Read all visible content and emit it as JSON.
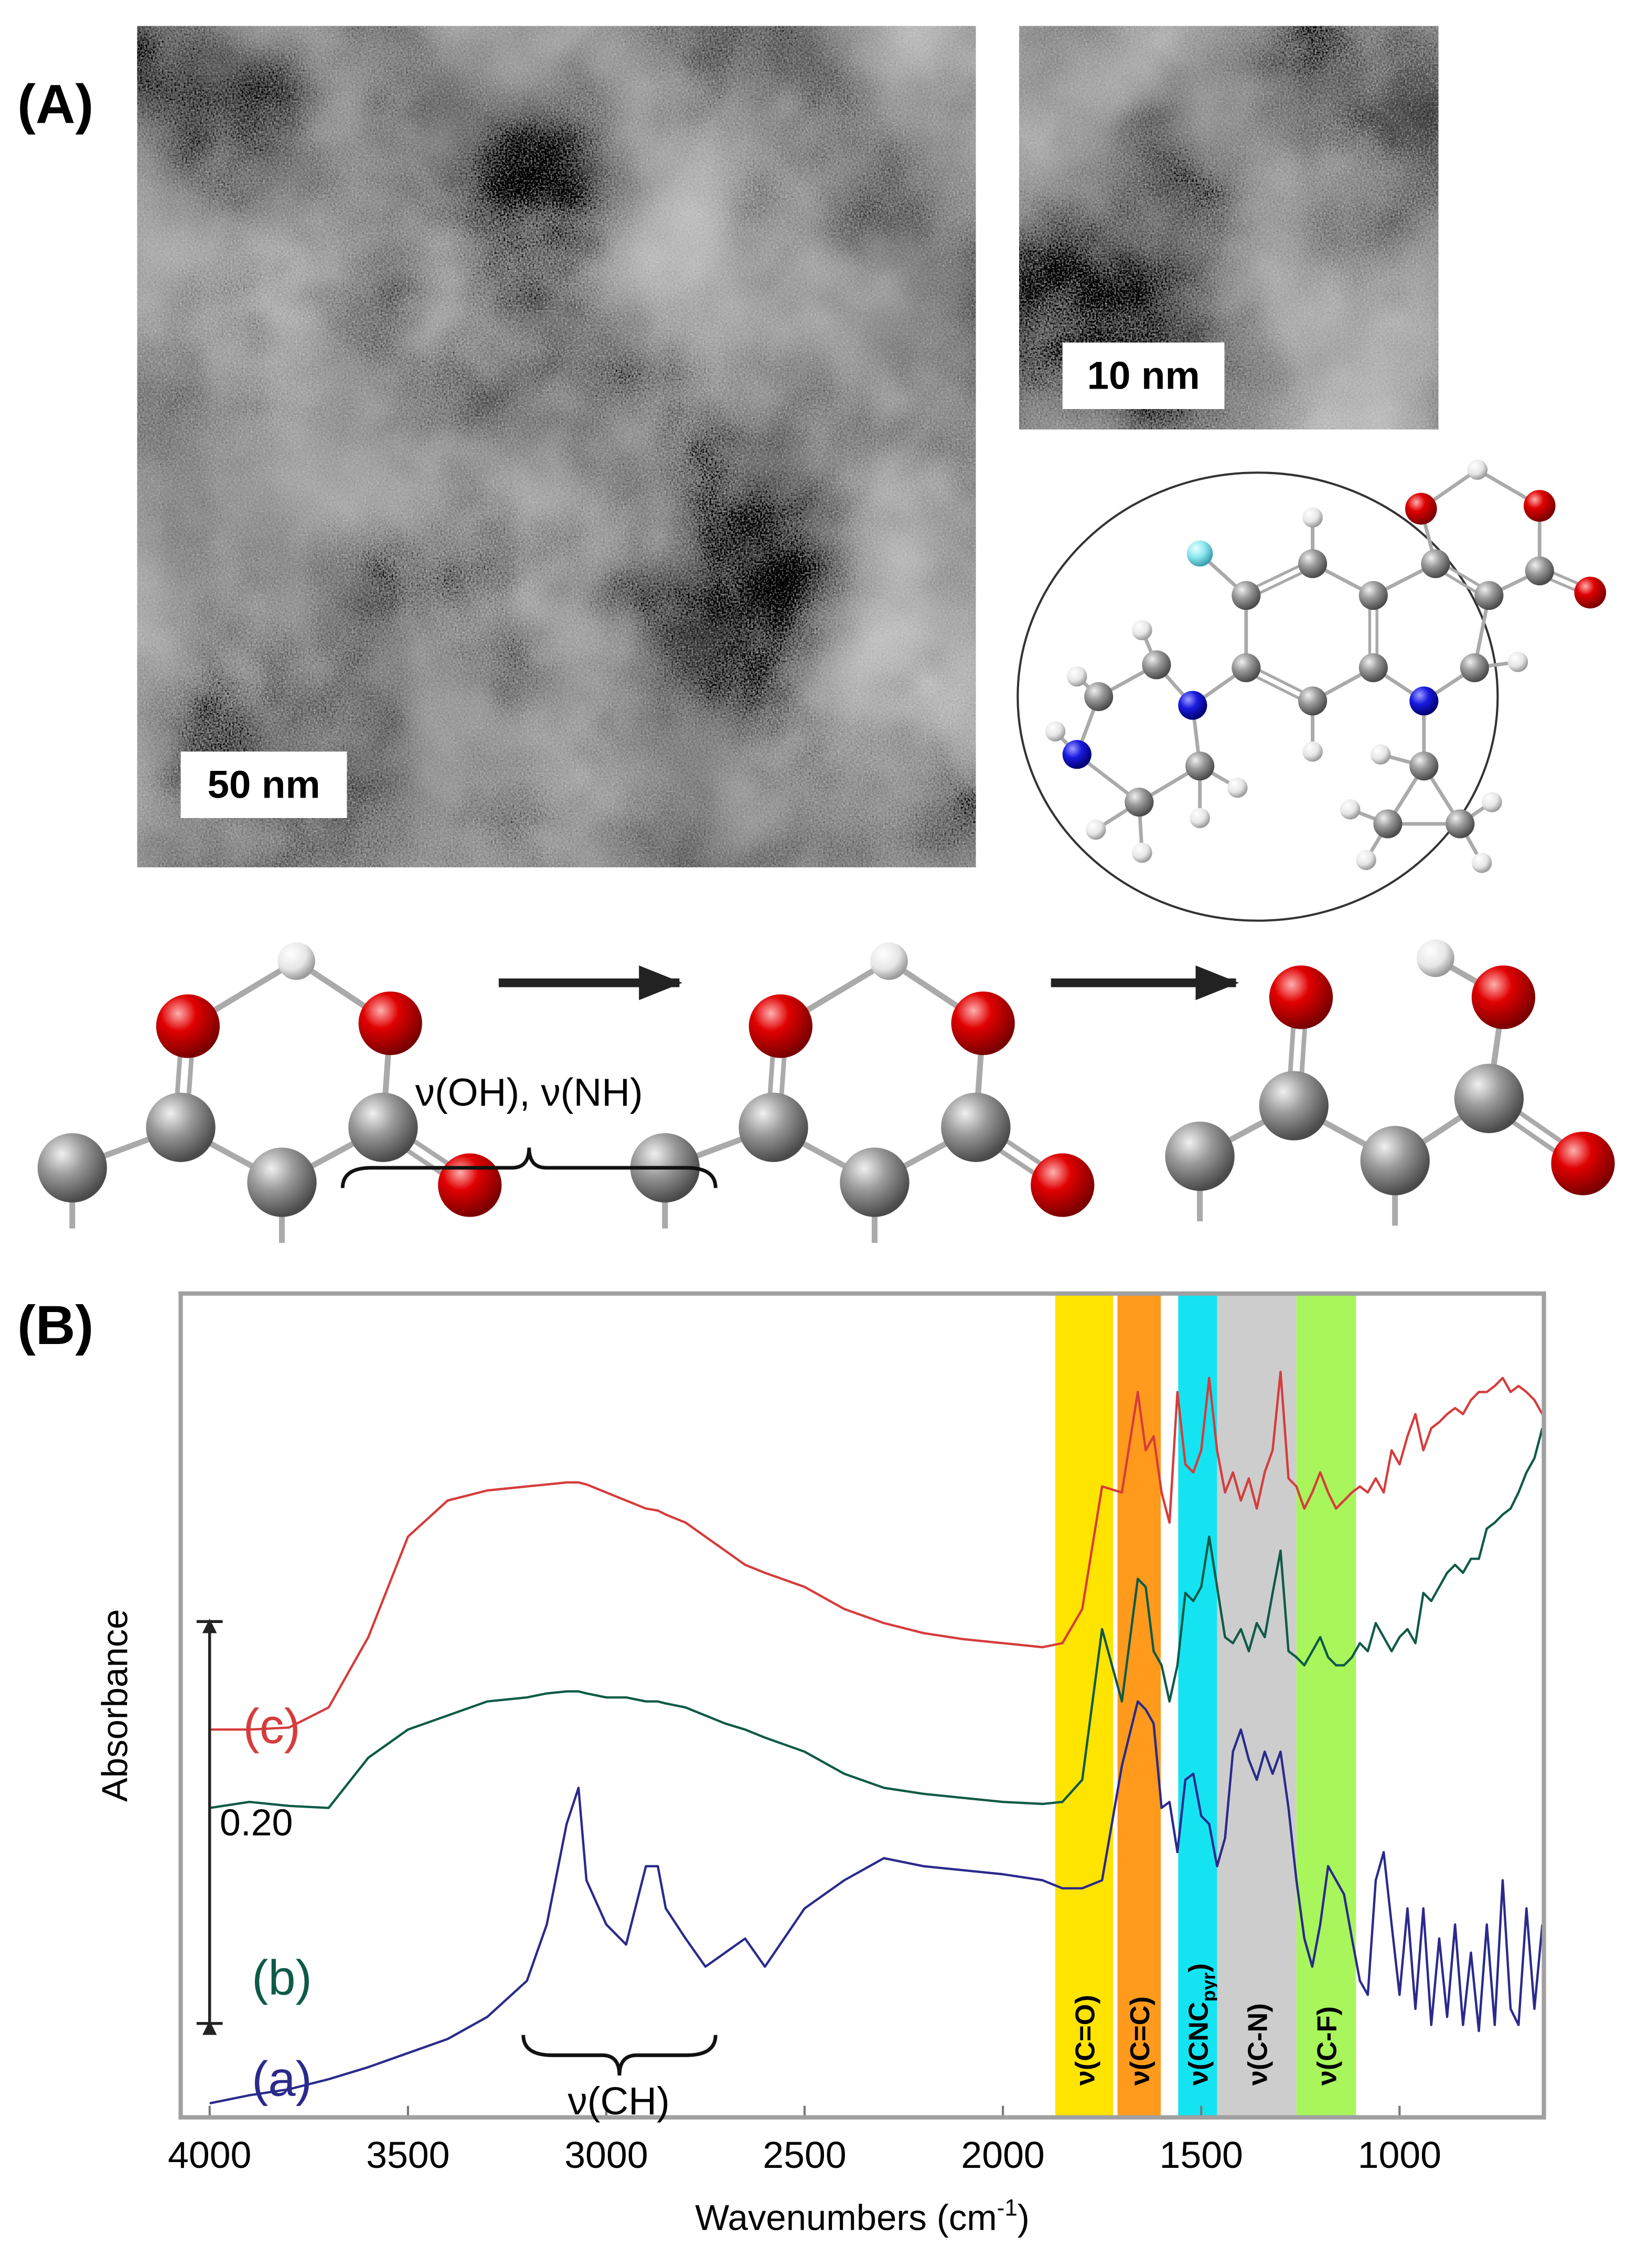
{
  "panel_a": {
    "label": "(A)",
    "scale_bar_large": "50 nm",
    "scale_bar_small": "10 nm"
  },
  "panel_b": {
    "label": "(B)"
  },
  "chart_data": {
    "type": "line",
    "ylabel": "Absorbance",
    "xlabel": "Wavenumbers (cm",
    "xlabel_sup": "-1",
    "xlabel_end": ")",
    "xlim": [
      4073,
      636
    ],
    "xticks": [
      4000,
      3500,
      3000,
      2500,
      2000,
      1500,
      1000
    ],
    "ylim": [
      0,
      0.41
    ],
    "x": [
      4000,
      3900,
      3800,
      3700,
      3600,
      3500,
      3400,
      3300,
      3200,
      3150,
      3100,
      3070,
      3050,
      3000,
      2950,
      2900,
      2870,
      2850,
      2800,
      2750,
      2700,
      2650,
      2600,
      2500,
      2400,
      2300,
      2200,
      2100,
      2000,
      1900,
      1850,
      1800,
      1750,
      1700,
      1660,
      1640,
      1620,
      1600,
      1580,
      1560,
      1540,
      1520,
      1500,
      1480,
      1460,
      1440,
      1420,
      1400,
      1380,
      1360,
      1340,
      1320,
      1300,
      1280,
      1260,
      1240,
      1220,
      1200,
      1180,
      1160,
      1140,
      1120,
      1100,
      1080,
      1060,
      1040,
      1020,
      1000,
      980,
      960,
      940,
      920,
      900,
      880,
      860,
      840,
      820,
      800,
      780,
      760,
      740,
      720,
      700,
      680,
      660,
      640
    ],
    "series": [
      {
        "name": "(a)",
        "color": "#2a2a8c",
        "values": [
          0.007,
          0.011,
          0.014,
          0.019,
          0.025,
          0.032,
          0.039,
          0.05,
          0.068,
          0.096,
          0.146,
          0.164,
          0.118,
          0.096,
          0.086,
          0.125,
          0.125,
          0.104,
          0.089,
          0.075,
          0.082,
          0.089,
          0.075,
          0.104,
          0.118,
          0.129,
          0.125,
          0.123,
          0.121,
          0.118,
          0.114,
          0.114,
          0.118,
          0.175,
          0.207,
          0.203,
          0.196,
          0.154,
          0.157,
          0.132,
          0.168,
          0.171,
          0.15,
          0.146,
          0.125,
          0.139,
          0.182,
          0.193,
          0.178,
          0.168,
          0.182,
          0.171,
          0.182,
          0.154,
          0.118,
          0.089,
          0.075,
          0.096,
          0.125,
          0.118,
          0.111,
          0.089,
          0.068,
          0.061,
          0.118,
          0.132,
          0.096,
          0.061,
          0.104,
          0.054,
          0.104,
          0.046,
          0.089,
          0.05,
          0.096,
          0.046,
          0.082,
          0.043,
          0.096,
          0.046,
          0.118,
          0.054,
          0.046,
          0.104,
          0.054,
          0.096
        ]
      },
      {
        "name": "(b)",
        "color": "#0e5a48",
        "values": [
          0.154,
          0.157,
          0.155,
          0.154,
          0.179,
          0.193,
          0.2,
          0.207,
          0.209,
          0.211,
          0.212,
          0.212,
          0.211,
          0.209,
          0.209,
          0.207,
          0.207,
          0.206,
          0.204,
          0.2,
          0.196,
          0.193,
          0.189,
          0.182,
          0.171,
          0.164,
          0.161,
          0.159,
          0.157,
          0.156,
          0.157,
          0.168,
          0.243,
          0.207,
          0.268,
          0.264,
          0.232,
          0.225,
          0.207,
          0.225,
          0.261,
          0.257,
          0.264,
          0.289,
          0.264,
          0.239,
          0.236,
          0.243,
          0.232,
          0.246,
          0.239,
          0.261,
          0.282,
          0.232,
          0.229,
          0.225,
          0.232,
          0.239,
          0.229,
          0.225,
          0.225,
          0.229,
          0.236,
          0.232,
          0.246,
          0.239,
          0.232,
          0.239,
          0.243,
          0.236,
          0.261,
          0.257,
          0.264,
          0.271,
          0.275,
          0.271,
          0.278,
          0.278,
          0.293,
          0.296,
          0.3,
          0.303,
          0.311,
          0.321,
          0.328,
          0.343
        ]
      },
      {
        "name": "(c)",
        "color": "#d63c3c",
        "values": [
          0.193,
          0.193,
          0.194,
          0.204,
          0.239,
          0.289,
          0.307,
          0.312,
          0.314,
          0.315,
          0.316,
          0.316,
          0.315,
          0.311,
          0.307,
          0.303,
          0.302,
          0.3,
          0.296,
          0.289,
          0.282,
          0.275,
          0.271,
          0.264,
          0.253,
          0.246,
          0.241,
          0.238,
          0.236,
          0.234,
          0.236,
          0.253,
          0.314,
          0.311,
          0.361,
          0.332,
          0.339,
          0.311,
          0.296,
          0.361,
          0.325,
          0.321,
          0.332,
          0.368,
          0.332,
          0.311,
          0.321,
          0.307,
          0.318,
          0.303,
          0.321,
          0.332,
          0.371,
          0.318,
          0.314,
          0.303,
          0.311,
          0.321,
          0.311,
          0.303,
          0.307,
          0.311,
          0.314,
          0.311,
          0.318,
          0.311,
          0.332,
          0.325,
          0.339,
          0.35,
          0.332,
          0.343,
          0.346,
          0.35,
          0.353,
          0.35,
          0.357,
          0.361,
          0.361,
          0.364,
          0.368,
          0.361,
          0.364,
          0.361,
          0.357,
          0.35
        ]
      }
    ],
    "bands": [
      {
        "label": "ν(C=O)",
        "range": [
          1868,
          1722
        ],
        "color": "#ffe400"
      },
      {
        "label": "ν(C=C)",
        "range": [
          1711,
          1602
        ],
        "color": "#ff9a1c"
      },
      {
        "label": "ν(CNC",
        "subscript": "pyr",
        "label_end": ")",
        "range": [
          1558,
          1460
        ],
        "color": "#14e4f2"
      },
      {
        "label": "ν(C-N)",
        "range": [
          1460,
          1260
        ],
        "color": "#cdcdcd"
      },
      {
        "label": "ν(C-F)",
        "range": [
          1260,
          1110
        ],
        "color": "#a8f55c"
      }
    ],
    "annotations": [
      {
        "text": "ν(OH), ν(NH)"
      },
      {
        "text": "ν(CH)"
      }
    ],
    "scale_bar": {
      "value": 0.2,
      "label": "0.20"
    }
  }
}
